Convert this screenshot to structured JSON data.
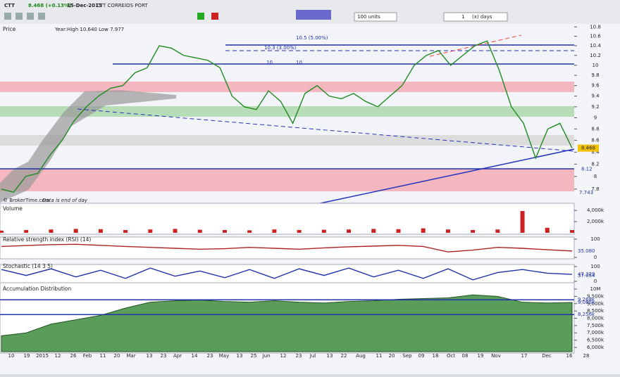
{
  "toolbar": {
    "symbol": "CTT",
    "quote": "8.468 (+0.13%)",
    "date": "15-Dec-2015",
    "name": "CTT CORREIOS PORT",
    "units": "100 units",
    "period_count": "1",
    "period_unit": "(x) days"
  },
  "x_axis_labels": [
    "10",
    "19",
    "2015",
    "12",
    "26",
    "Feb",
    "11",
    "20",
    "Mar",
    "13",
    "23",
    "Apr",
    "14",
    "23",
    "May",
    "13",
    "25",
    "Jun",
    "12",
    "23",
    "Jul",
    "13",
    "22",
    "Aug",
    "11",
    "20",
    "Sep",
    "09",
    "18",
    "Oct",
    "08",
    "19",
    "Nov",
    "17",
    "Dec",
    "16",
    "28"
  ],
  "chart_data": [
    {
      "type": "line",
      "title": "Price",
      "subtitle": "Year:High 10.640 Low 7.977",
      "log": true,
      "ylim": [
        7.57,
        10.85
      ],
      "yticks": [
        7.8,
        8,
        8.2,
        8.4,
        8.6,
        8.8,
        9,
        9.2,
        9.4,
        9.6,
        9.8,
        10,
        10.2,
        10.4,
        10.6,
        10.8
      ],
      "series": [
        {
          "color": "#1f8a1f",
          "values": [
            7.8,
            7.75,
            8.0,
            8.05,
            8.35,
            8.6,
            8.95,
            9.2,
            9.4,
            9.55,
            9.6,
            9.85,
            9.95,
            10.4,
            10.35,
            10.2,
            10.15,
            10.1,
            9.95,
            9.4,
            9.2,
            9.15,
            9.5,
            9.3,
            8.9,
            9.45,
            9.6,
            9.4,
            9.35,
            9.45,
            9.3,
            9.2,
            9.4,
            9.6,
            10.0,
            10.2,
            10.3,
            10.0,
            10.2,
            10.4,
            10.5,
            9.9,
            9.2,
            8.9,
            8.3,
            8.8,
            8.9,
            8.468
          ],
          "value_labels": {
            "47": "8.468"
          }
        }
      ],
      "annotations": [
        {
          "value": 10.5,
          "label": "10.5 (5.00%)"
        },
        {
          "value": 10.3,
          "label": "10.3 (3.00%)"
        },
        {
          "value": 10,
          "label": "10"
        },
        {
          "value": 10,
          "label": "10"
        },
        {
          "value": 8.12,
          "label": "8.12"
        },
        {
          "value": 7.743,
          "label": "7.743"
        }
      ],
      "credit": "© BrokerTime.com",
      "note": "Data is end of day"
    },
    {
      "type": "bar",
      "title": "Volume",
      "ylim": [
        0,
        4900
      ],
      "yticks": [
        {
          "value": 2000,
          "label": "2,000k"
        },
        {
          "value": 4000,
          "label": "4,000k"
        }
      ],
      "series": [
        {
          "color": "#cc2222",
          "values": [
            400,
            500,
            600,
            700,
            650,
            500,
            600,
            700,
            550,
            500,
            450,
            600,
            500,
            550,
            600,
            700,
            650,
            800,
            600,
            500,
            600,
            3900,
            900,
            500
          ]
        }
      ]
    },
    {
      "type": "line",
      "title": "Relative strength index (RSI) (14)",
      "ylim": [
        0,
        100
      ],
      "yticks": [
        0,
        100
      ],
      "series": [
        {
          "color": "#aa2222",
          "values": [
            60,
            65,
            70,
            72,
            66,
            60,
            55,
            50,
            45,
            48,
            55,
            50,
            45,
            52,
            58,
            62,
            66,
            60,
            30,
            40,
            55,
            50,
            42,
            35.08
          ]
        }
      ],
      "annotations": [
        {
          "value": 35.08,
          "label": "35.080"
        }
      ]
    },
    {
      "type": "line",
      "title": "Stochastic (14 3 5)",
      "ylim": [
        0,
        100
      ],
      "yticks": [
        0,
        100
      ],
      "series": [
        {
          "color": "#2233aa",
          "values": [
            80,
            40,
            85,
            30,
            75,
            20,
            90,
            35,
            70,
            25,
            80,
            20,
            85,
            40,
            90,
            30,
            75,
            20,
            85,
            10,
            60,
            80,
            55,
            47.329
          ]
        }
      ],
      "annotations": [
        {
          "value": 47.329,
          "label": "47.329"
        },
        {
          "value": 37.054,
          "label": "37.054"
        }
      ]
    },
    {
      "type": "area",
      "title": "Accumulation Distribution",
      "ylim": [
        5710,
        10290
      ],
      "yticks": [
        {
          "value": 6000,
          "label": "6,000k"
        },
        {
          "value": 6500,
          "label": "6,500k"
        },
        {
          "value": 7000,
          "label": "7,000k"
        },
        {
          "value": 7500,
          "label": "7,500k"
        },
        {
          "value": 8000,
          "label": "8,000k"
        },
        {
          "value": 8500,
          "label": "8,500k"
        },
        {
          "value": 9000,
          "label": "9,000k"
        },
        {
          "value": 9500,
          "label": "9,500k"
        },
        {
          "value": 10000,
          "label": "10M"
        }
      ],
      "series": [
        {
          "color": "#3d8b3d",
          "values": [
            6800,
            7000,
            7600,
            7900,
            8200,
            8700,
            9100,
            9200,
            9250,
            9150,
            9100,
            9200,
            9100,
            9050,
            9150,
            9200,
            9300,
            9350,
            9400,
            9600,
            9500,
            9100,
            9050,
            9085
          ]
        }
      ],
      "annotations": [
        {
          "value": 9268,
          "label": "9,268k",
          "line": true
        },
        {
          "value": 8256,
          "label": "8,256k",
          "line": true
        },
        {
          "value": 9085,
          "label": "9,085k"
        }
      ]
    }
  ]
}
